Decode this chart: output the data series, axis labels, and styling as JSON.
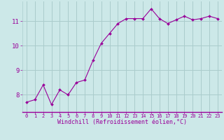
{
  "x": [
    0,
    1,
    2,
    3,
    4,
    5,
    6,
    7,
    8,
    9,
    10,
    11,
    12,
    13,
    14,
    15,
    16,
    17,
    18,
    19,
    20,
    21,
    22,
    23
  ],
  "y": [
    7.7,
    7.8,
    8.4,
    7.6,
    8.2,
    8.0,
    8.5,
    8.6,
    9.4,
    10.1,
    10.5,
    10.9,
    11.1,
    11.1,
    11.1,
    11.5,
    11.1,
    10.9,
    11.05,
    11.2,
    11.05,
    11.1,
    11.2,
    11.1
  ],
  "line_color": "#990099",
  "marker": "D",
  "marker_size": 2.0,
  "bg_color": "#cce8e8",
  "grid_color": "#aacccc",
  "xlabel": "Windchill (Refroidissement éolien,°C)",
  "xlabel_color": "#990099",
  "tick_color": "#990099",
  "yticks": [
    8,
    9,
    10,
    11
  ],
  "xticks": [
    0,
    1,
    2,
    3,
    4,
    5,
    6,
    7,
    8,
    9,
    10,
    11,
    12,
    13,
    14,
    15,
    16,
    17,
    18,
    19,
    20,
    21,
    22,
    23
  ],
  "ylim": [
    7.3,
    11.8
  ],
  "xlim": [
    -0.5,
    23.5
  ]
}
